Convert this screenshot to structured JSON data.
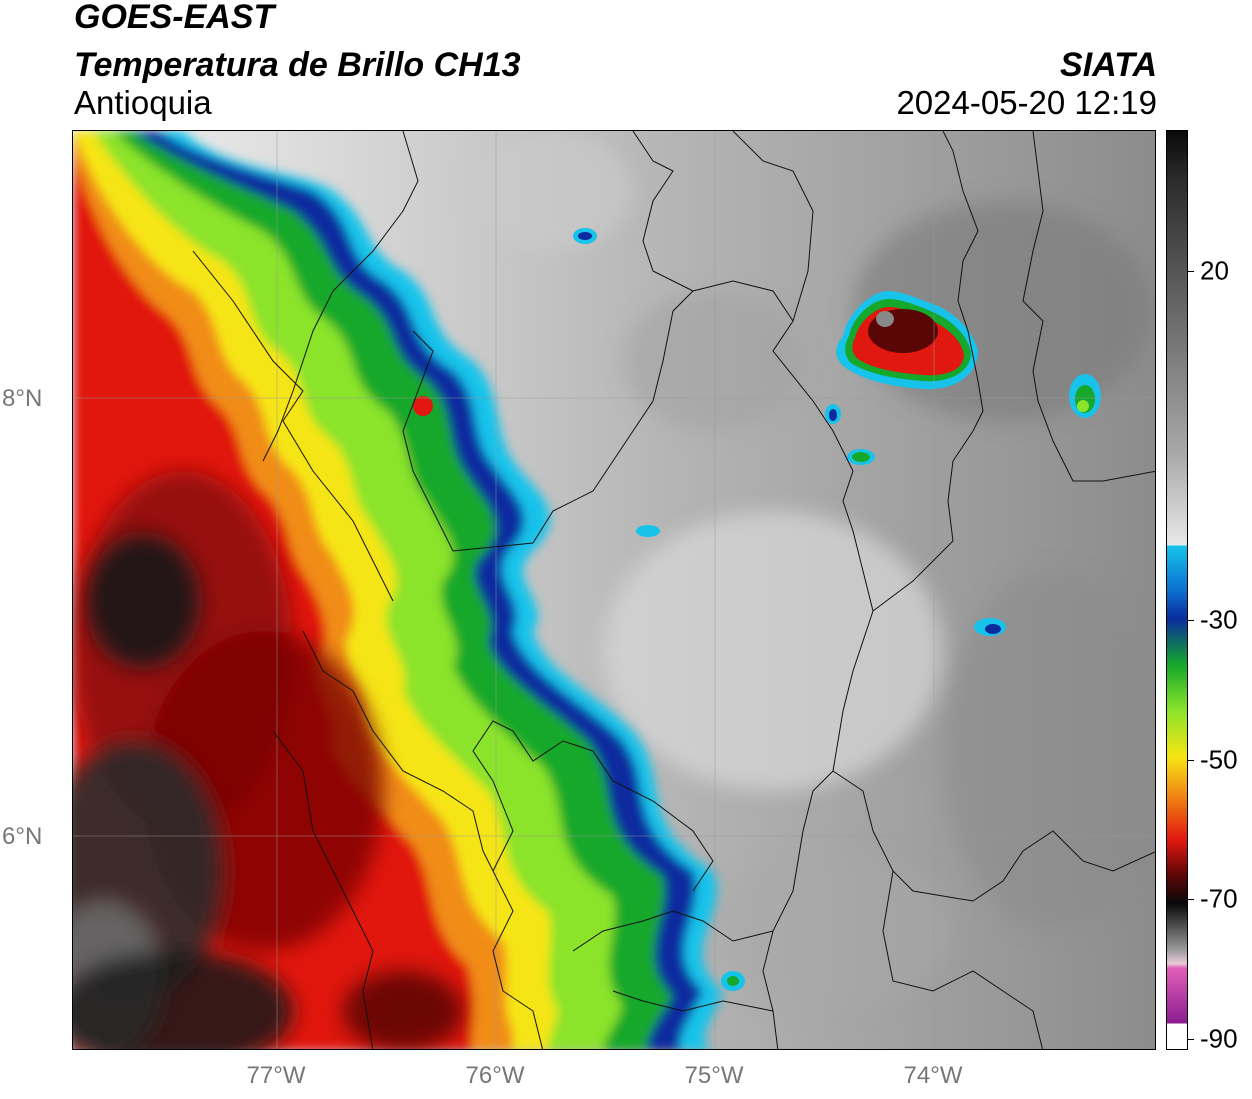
{
  "header": {
    "satellite": "GOES-EAST",
    "product": "Temperatura de Brillo CH13",
    "region": "Antioquia",
    "agency": "SIATA",
    "datetime": "2024-05-20 12:19"
  },
  "map": {
    "lat_labels": [
      "8°N",
      "6°N"
    ],
    "lon_labels": [
      "77°W",
      "76°W",
      "75°W",
      "74°W"
    ],
    "grid": true,
    "extent": {
      "lon_min": -77.95,
      "lon_max": -73.0,
      "lat_min": 4.95,
      "lat_max": 9.15
    }
  },
  "colorbar": {
    "tick_labels": [
      "20",
      "-30",
      "-50",
      "-70",
      "-90"
    ],
    "colors": {
      "white": "#f2f2f2",
      "cyan": "#17c3ea",
      "blue": "#0b2c9f",
      "green": "#15a82b",
      "lime": "#8be32b",
      "yellow": "#f6e514",
      "orange": "#f18c13",
      "red": "#e11810",
      "darkred": "#5a0606",
      "black": "#0a0a0a",
      "pink": "#e05fb9",
      "purple": "#8b1d8f"
    }
  }
}
